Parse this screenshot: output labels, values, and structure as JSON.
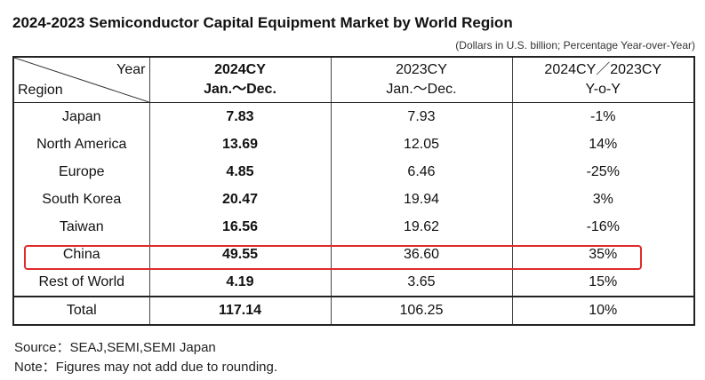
{
  "title": "2024-2023 Semiconductor Capital Equipment Market by World Region",
  "subtitle": "(Dollars in U.S. billion; Percentage Year-over-Year)",
  "header": {
    "year_label": "Year",
    "region_label": "Region",
    "col1_line1": "2024CY",
    "col1_line2": "Jan.～Dec.",
    "col2_line1": "2023CY",
    "col2_line2": "Jan.～Dec.",
    "col3_line1": "2024CY／2023CY",
    "col3_line2": "Y-o-Y"
  },
  "rows": [
    {
      "region": "Japan",
      "y2024": "7.83",
      "y2023": "7.93",
      "yoy": "-1%"
    },
    {
      "region": "North America",
      "y2024": "13.69",
      "y2023": "12.05",
      "yoy": "14%"
    },
    {
      "region": "Europe",
      "y2024": "4.85",
      "y2023": "6.46",
      "yoy": "-25%"
    },
    {
      "region": "South Korea",
      "y2024": "20.47",
      "y2023": "19.94",
      "yoy": "3%"
    },
    {
      "region": "Taiwan",
      "y2024": "16.56",
      "y2023": "19.62",
      "yoy": "-16%"
    },
    {
      "region": "China",
      "y2024": "49.55",
      "y2023": "36.60",
      "yoy": "35%"
    },
    {
      "region": "Rest of World",
      "y2024": "4.19",
      "y2023": "3.65",
      "yoy": "15%"
    }
  ],
  "total": {
    "region": "Total",
    "y2024": "117.14",
    "y2023": "106.25",
    "yoy": "10%"
  },
  "notes": {
    "source": "Source：SEAJ,SEMI,SEMI Japan",
    "note": "Note：Figures may not add due to rounding."
  },
  "highlight": {
    "row": "China",
    "color": "#e02a2a"
  }
}
